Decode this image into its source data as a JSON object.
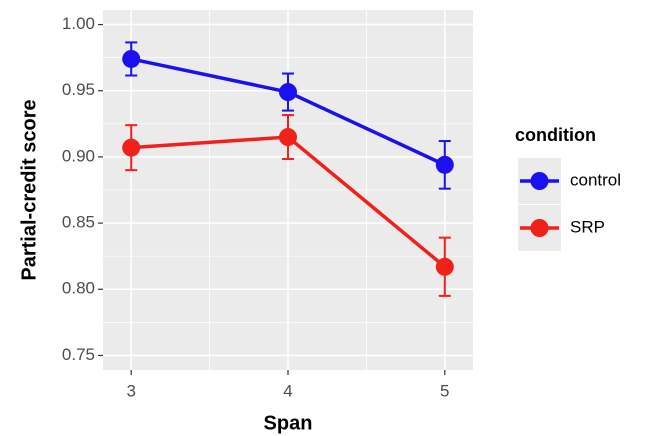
{
  "chart_data": {
    "type": "line",
    "x_label": "Span",
    "y_label": "Partial-credit score",
    "x": [
      3,
      4,
      5
    ],
    "xlim": [
      2.82,
      5.18
    ],
    "xticks": [
      3,
      4,
      5
    ],
    "ylim": [
      0.739,
      1.011
    ],
    "yticks": [
      {
        "value": 0.75,
        "label": "0.75"
      },
      {
        "value": 0.8,
        "label": "0.80"
      },
      {
        "value": 0.85,
        "label": "0.85"
      },
      {
        "value": 0.9,
        "label": "0.90"
      },
      {
        "value": 0.95,
        "label": "0.95"
      },
      {
        "value": 1.0,
        "label": "1.00"
      }
    ],
    "grid": true,
    "legend_title": "condition",
    "legend_position": "right",
    "series": [
      {
        "name": "control",
        "color": "#1a10f0",
        "values": [
          0.974,
          0.949,
          0.894
        ],
        "errors": [
          0.0125,
          0.014,
          0.018
        ]
      },
      {
        "name": "SRP",
        "color": "#f0201a",
        "values": [
          0.907,
          0.915,
          0.817
        ],
        "errors": [
          0.017,
          0.0166,
          0.022
        ]
      }
    ]
  }
}
